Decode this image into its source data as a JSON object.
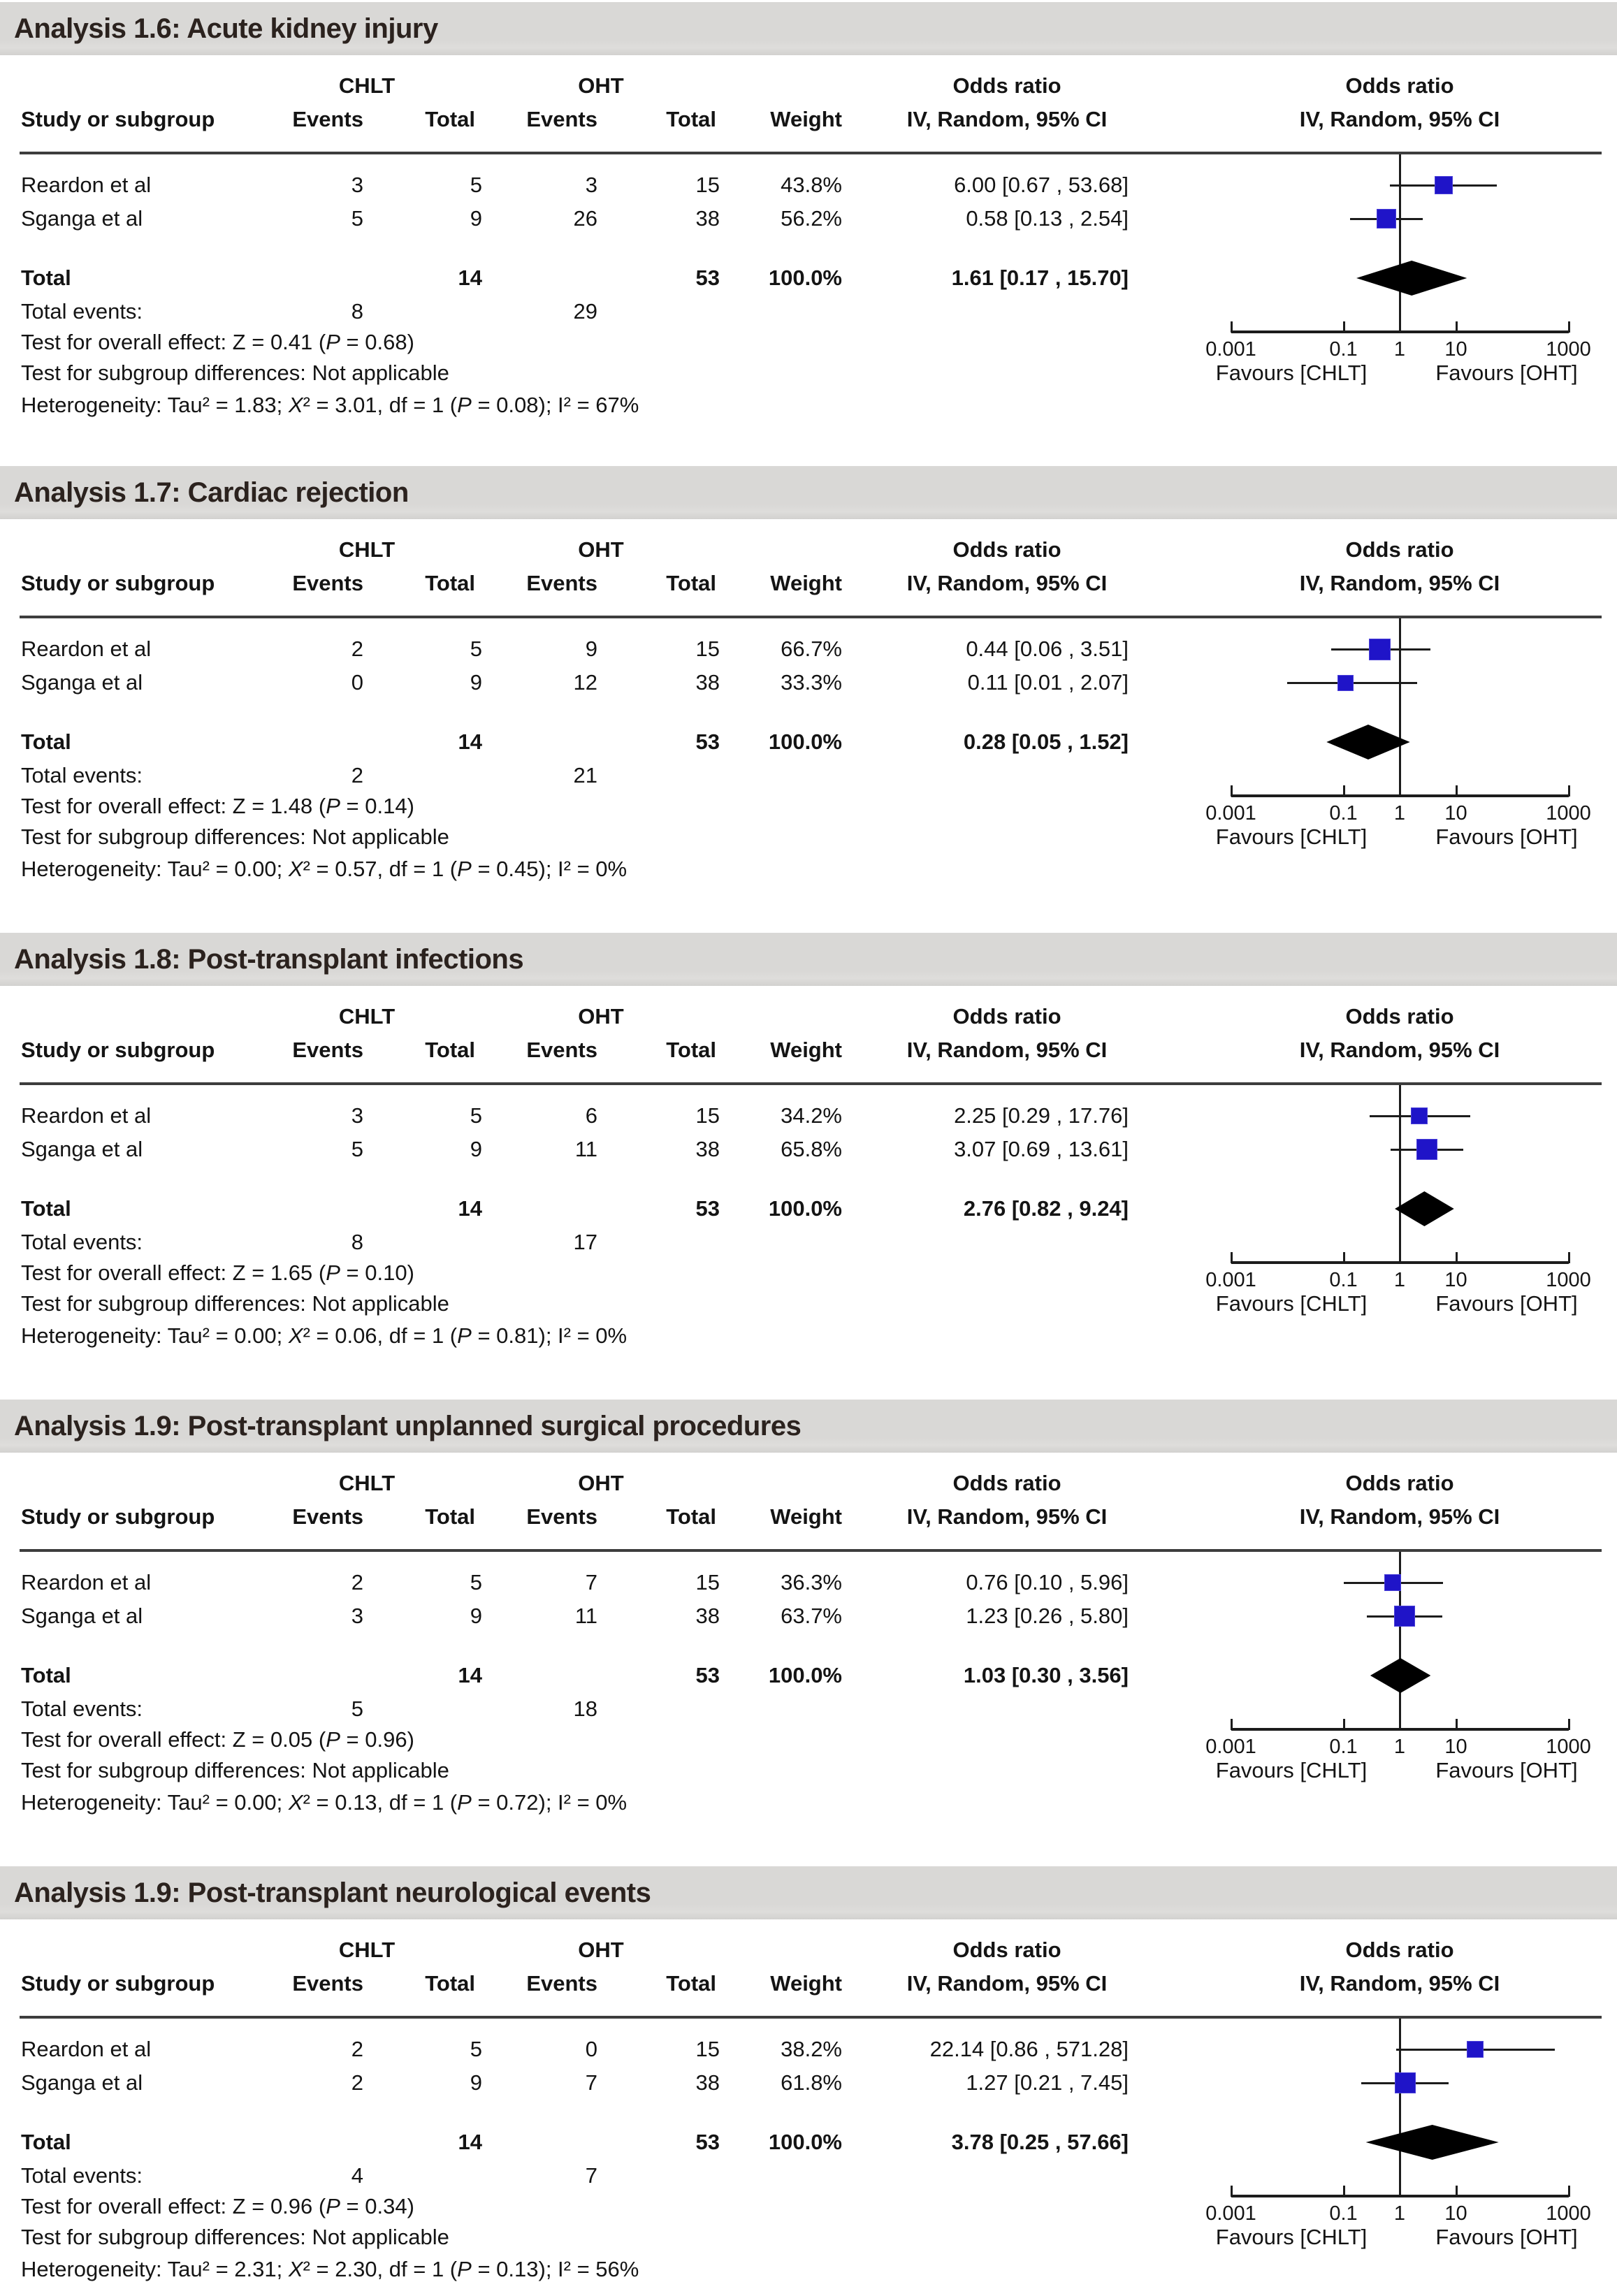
{
  "columns": {
    "group1": "CHLT",
    "group2": "OHT",
    "study": "Study or subgroup",
    "events": "Events",
    "total": "Total",
    "weight": "Weight",
    "or_line1": "Odds ratio",
    "or_line2": "IV, Random, 95% CI"
  },
  "axis": {
    "scale": "log10",
    "ticks": [
      {
        "v": 0.001,
        "label": "0.001"
      },
      {
        "v": 0.1,
        "label": "0.1"
      },
      {
        "v": 1,
        "label": "1"
      },
      {
        "v": 10,
        "label": "10"
      },
      {
        "v": 1000,
        "label": "1000"
      }
    ],
    "favours_left": "Favours [CHLT]",
    "favours_right": "Favours [OHT]"
  },
  "chart_data": [
    {
      "type": "forest",
      "title": "Analysis 1.6: Acute kidney injury",
      "rows": [
        {
          "study": "Reardon et al",
          "chlt_events": "3",
          "chlt_total": "5",
          "oht_events": "3",
          "oht_total": "15",
          "weight": "43.8%",
          "weight_pct": 43.8,
          "or": 6.0,
          "ci_low": 0.67,
          "ci_high": 53.68,
          "or_label": "6.00 [0.67 , 53.68]"
        },
        {
          "study": "Sganga et al",
          "chlt_events": "5",
          "chlt_total": "9",
          "oht_events": "26",
          "oht_total": "38",
          "weight": "56.2%",
          "weight_pct": 56.2,
          "or": 0.58,
          "ci_low": 0.13,
          "ci_high": 2.54,
          "or_label": "0.58 [0.13 , 2.54]"
        }
      ],
      "total": {
        "label": "Total",
        "chlt_total": "14",
        "oht_total": "53",
        "weight": "100.0%",
        "or": 1.61,
        "ci_low": 0.17,
        "ci_high": 15.7,
        "or_label": "1.61 [0.17 , 15.70]"
      },
      "total_events": {
        "label": "Total events:",
        "chlt": "8",
        "oht": "29"
      },
      "overall_effect": [
        {
          "t": "Test for overall effect: Z = 0.41 (",
          "i": false
        },
        {
          "t": "P",
          "i": true
        },
        {
          "t": " = 0.68)",
          "i": false
        }
      ],
      "subgroup": "Test for subgroup differences: Not applicable",
      "heterogeneity": [
        {
          "t": "Heterogeneity: Tau² = 1.83; ",
          "i": false
        },
        {
          "t": "Χ",
          "i": true
        },
        {
          "t": "² = 3.01, df = 1 (",
          "i": false
        },
        {
          "t": "P",
          "i": true
        },
        {
          "t": " = 0.08); I² = 67%",
          "i": false
        }
      ]
    },
    {
      "type": "forest",
      "title": "Analysis 1.7: Cardiac rejection",
      "rows": [
        {
          "study": "Reardon et al",
          "chlt_events": "2",
          "chlt_total": "5",
          "oht_events": "9",
          "oht_total": "15",
          "weight": "66.7%",
          "weight_pct": 66.7,
          "or": 0.44,
          "ci_low": 0.06,
          "ci_high": 3.51,
          "or_label": "0.44 [0.06 , 3.51]"
        },
        {
          "study": "Sganga et al",
          "chlt_events": "0",
          "chlt_total": "9",
          "oht_events": "12",
          "oht_total": "38",
          "weight": "33.3%",
          "weight_pct": 33.3,
          "or": 0.11,
          "ci_low": 0.01,
          "ci_high": 2.07,
          "or_label": "0.11 [0.01 , 2.07]"
        }
      ],
      "total": {
        "label": "Total",
        "chlt_total": "14",
        "oht_total": "53",
        "weight": "100.0%",
        "or": 0.28,
        "ci_low": 0.05,
        "ci_high": 1.52,
        "or_label": "0.28 [0.05 , 1.52]"
      },
      "total_events": {
        "label": "Total events:",
        "chlt": "2",
        "oht": "21"
      },
      "overall_effect": [
        {
          "t": "Test for overall effect: Z = 1.48 (",
          "i": false
        },
        {
          "t": "P",
          "i": true
        },
        {
          "t": " = 0.14)",
          "i": false
        }
      ],
      "subgroup": "Test for subgroup differences: Not applicable",
      "heterogeneity": [
        {
          "t": "Heterogeneity: Tau² = 0.00; ",
          "i": false
        },
        {
          "t": "Χ",
          "i": true
        },
        {
          "t": "² = 0.57, df = 1 (",
          "i": false
        },
        {
          "t": "P",
          "i": true
        },
        {
          "t": " = 0.45); I² = 0%",
          "i": false
        }
      ]
    },
    {
      "type": "forest",
      "title": "Analysis 1.8: Post-transplant infections",
      "rows": [
        {
          "study": "Reardon et al",
          "chlt_events": "3",
          "chlt_total": "5",
          "oht_events": "6",
          "oht_total": "15",
          "weight": "34.2%",
          "weight_pct": 34.2,
          "or": 2.25,
          "ci_low": 0.29,
          "ci_high": 17.76,
          "or_label": "2.25 [0.29 , 17.76]"
        },
        {
          "study": "Sganga et al",
          "chlt_events": "5",
          "chlt_total": "9",
          "oht_events": "11",
          "oht_total": "38",
          "weight": "65.8%",
          "weight_pct": 65.8,
          "or": 3.07,
          "ci_low": 0.69,
          "ci_high": 13.61,
          "or_label": "3.07 [0.69 , 13.61]"
        }
      ],
      "total": {
        "label": "Total",
        "chlt_total": "14",
        "oht_total": "53",
        "weight": "100.0%",
        "or": 2.76,
        "ci_low": 0.82,
        "ci_high": 9.24,
        "or_label": "2.76 [0.82 , 9.24]"
      },
      "total_events": {
        "label": "Total events:",
        "chlt": "8",
        "oht": "17"
      },
      "overall_effect": [
        {
          "t": "Test for overall effect: Z = 1.65 (",
          "i": false
        },
        {
          "t": "P",
          "i": true
        },
        {
          "t": " = 0.10)",
          "i": false
        }
      ],
      "subgroup": "Test for subgroup differences: Not applicable",
      "heterogeneity": [
        {
          "t": "Heterogeneity: Tau² = 0.00; ",
          "i": false
        },
        {
          "t": "Χ",
          "i": true
        },
        {
          "t": "² = 0.06, df = 1 (",
          "i": false
        },
        {
          "t": "P",
          "i": true
        },
        {
          "t": " = 0.81); I² = 0%",
          "i": false
        }
      ]
    },
    {
      "type": "forest",
      "title": "Analysis 1.9: Post-transplant unplanned surgical procedures",
      "rows": [
        {
          "study": "Reardon et al",
          "chlt_events": "2",
          "chlt_total": "5",
          "oht_events": "7",
          "oht_total": "15",
          "weight": "36.3%",
          "weight_pct": 36.3,
          "or": 0.76,
          "ci_low": 0.1,
          "ci_high": 5.96,
          "or_label": "0.76 [0.10 , 5.96]"
        },
        {
          "study": "Sganga et al",
          "chlt_events": "3",
          "chlt_total": "9",
          "oht_events": "11",
          "oht_total": "38",
          "weight": "63.7%",
          "weight_pct": 63.7,
          "or": 1.23,
          "ci_low": 0.26,
          "ci_high": 5.8,
          "or_label": "1.23 [0.26 , 5.80]"
        }
      ],
      "total": {
        "label": "Total",
        "chlt_total": "14",
        "oht_total": "53",
        "weight": "100.0%",
        "or": 1.03,
        "ci_low": 0.3,
        "ci_high": 3.56,
        "or_label": "1.03 [0.30 , 3.56]"
      },
      "total_events": {
        "label": "Total events:",
        "chlt": "5",
        "oht": "18"
      },
      "overall_effect": [
        {
          "t": "Test for overall effect: Z = 0.05 (",
          "i": false
        },
        {
          "t": "P",
          "i": true
        },
        {
          "t": " = 0.96)",
          "i": false
        }
      ],
      "subgroup": "Test for subgroup differences: Not applicable",
      "heterogeneity": [
        {
          "t": "Heterogeneity: Tau² = 0.00; ",
          "i": false
        },
        {
          "t": "Χ",
          "i": true
        },
        {
          "t": "² = 0.13, df = 1 (",
          "i": false
        },
        {
          "t": "P",
          "i": true
        },
        {
          "t": " = 0.72); I² = 0%",
          "i": false
        }
      ]
    },
    {
      "type": "forest",
      "title": "Analysis 1.9: Post-transplant neurological events",
      "rows": [
        {
          "study": "Reardon et al",
          "chlt_events": "2",
          "chlt_total": "5",
          "oht_events": "0",
          "oht_total": "15",
          "weight": "38.2%",
          "weight_pct": 38.2,
          "or": 22.14,
          "ci_low": 0.86,
          "ci_high": 571.28,
          "or_label": "22.14 [0.86 , 571.28]"
        },
        {
          "study": "Sganga et al",
          "chlt_events": "2",
          "chlt_total": "9",
          "oht_events": "7",
          "oht_total": "38",
          "weight": "61.8%",
          "weight_pct": 61.8,
          "or": 1.27,
          "ci_low": 0.21,
          "ci_high": 7.45,
          "or_label": "1.27 [0.21 , 7.45]"
        }
      ],
      "total": {
        "label": "Total",
        "chlt_total": "14",
        "oht_total": "53",
        "weight": "100.0%",
        "or": 3.78,
        "ci_low": 0.25,
        "ci_high": 57.66,
        "or_label": "3.78 [0.25 , 57.66]"
      },
      "total_events": {
        "label": "Total events:",
        "chlt": "4",
        "oht": "7"
      },
      "overall_effect": [
        {
          "t": "Test for overall effect: Z = 0.96 (",
          "i": false
        },
        {
          "t": "P",
          "i": true
        },
        {
          "t": " = 0.34)",
          "i": false
        }
      ],
      "subgroup": "Test for subgroup differences: Not applicable",
      "heterogeneity": [
        {
          "t": "Heterogeneity: Tau² = 2.31; ",
          "i": false
        },
        {
          "t": "Χ",
          "i": true
        },
        {
          "t": "² = 2.30, df = 1 (",
          "i": false
        },
        {
          "t": "P",
          "i": true
        },
        {
          "t": " = 0.13); I² = 56%",
          "i": false
        }
      ]
    }
  ]
}
